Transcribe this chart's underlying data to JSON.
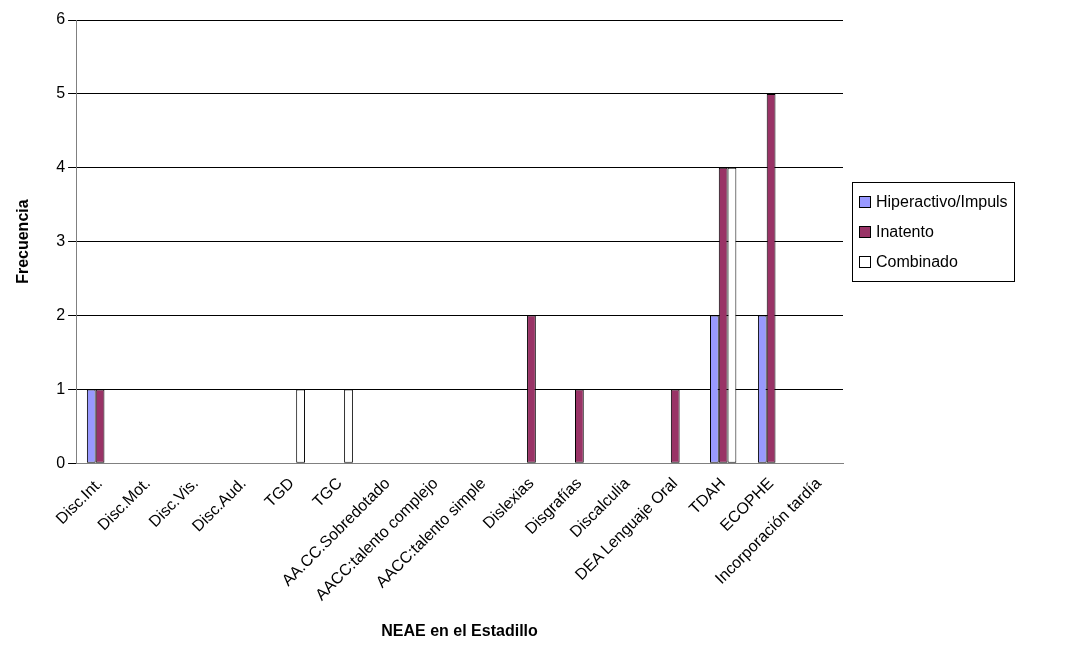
{
  "chart_data": {
    "type": "bar",
    "xlabel": "NEAE en el Estadillo",
    "ylabel": "Frecuencia",
    "categories": [
      "Disc.Int.",
      "Disc.Mot.",
      "Disc.Vis.",
      "Disc.Aud.",
      "TGD",
      "TGC",
      "AA.CC.Sobredotado",
      "AACC:talento complejo",
      "AACC:talento simple",
      "Dislexias",
      "Disgrafías",
      "Discalculia",
      "DEA Lenguaje Oral",
      "TDAH",
      "ECOPHE",
      "Incorporación tardía"
    ],
    "series": [
      {
        "name": "Hiperactivo/Impuls",
        "color": "#9999ff",
        "values": [
          1,
          0,
          0,
          0,
          0,
          0,
          0,
          0,
          0,
          0,
          0,
          0,
          0,
          2,
          2,
          0
        ]
      },
      {
        "name": "Inatento",
        "color": "#993366",
        "values": [
          1,
          0,
          0,
          0,
          0,
          0,
          0,
          0,
          0,
          2,
          1,
          0,
          1,
          4,
          5,
          0
        ]
      },
      {
        "name": "Combinado",
        "color": "#ffffff",
        "values": [
          0,
          0,
          0,
          0,
          1,
          1,
          0,
          0,
          0,
          0,
          0,
          0,
          0,
          4,
          0,
          0
        ]
      }
    ],
    "ylim": [
      0,
      6
    ],
    "yticks": [
      0,
      1,
      2,
      3,
      4,
      5,
      6
    ],
    "grid": "y",
    "legend": "right"
  }
}
